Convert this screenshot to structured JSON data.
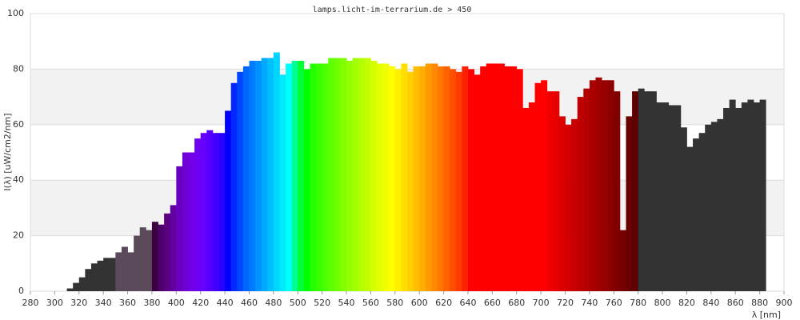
{
  "chart_data": {
    "type": "spectrum",
    "title": "lamps.licht-im-terrarium.de > 450",
    "x_label": "λ [nm]",
    "y_label": "I(λ)  [uW/cm2/nm]",
    "x": [
      280,
      285,
      290,
      295,
      300,
      305,
      310,
      315,
      320,
      325,
      330,
      335,
      340,
      345,
      350,
      355,
      360,
      365,
      370,
      375,
      380,
      385,
      390,
      395,
      400,
      405,
      410,
      415,
      420,
      425,
      430,
      435,
      440,
      445,
      450,
      455,
      460,
      465,
      470,
      475,
      480,
      485,
      490,
      495,
      500,
      505,
      510,
      515,
      520,
      525,
      530,
      535,
      540,
      545,
      550,
      555,
      560,
      565,
      570,
      575,
      580,
      585,
      590,
      595,
      600,
      605,
      610,
      615,
      620,
      625,
      630,
      635,
      640,
      645,
      650,
      655,
      660,
      665,
      670,
      675,
      680,
      685,
      690,
      695,
      700,
      705,
      710,
      715,
      720,
      725,
      730,
      735,
      740,
      745,
      750,
      755,
      760,
      765,
      770,
      775,
      780,
      785,
      790,
      795,
      800,
      805,
      810,
      815,
      820,
      825,
      830,
      835,
      840,
      845,
      850,
      855,
      860,
      865,
      870,
      875,
      880
    ],
    "values": [
      0,
      0,
      0,
      0,
      0,
      0,
      1,
      3,
      5,
      8,
      10,
      11,
      12,
      12,
      14,
      16,
      14,
      20,
      23,
      22,
      25,
      24,
      28,
      31,
      45,
      50,
      50,
      55,
      57,
      58,
      57,
      57,
      65,
      75,
      79,
      81,
      83,
      83,
      84,
      84,
      86,
      78,
      82,
      83,
      83,
      80,
      82,
      82,
      82,
      84,
      84,
      84,
      83,
      84,
      84,
      84,
      83,
      82,
      82,
      81,
      80,
      82,
      79,
      81,
      81,
      82,
      82,
      81,
      81,
      80,
      79,
      81,
      80,
      78,
      81,
      82,
      82,
      82,
      81,
      81,
      80,
      66,
      68,
      75,
      76,
      72,
      72,
      63,
      60,
      62,
      70,
      73,
      76,
      77,
      76,
      76,
      72,
      22,
      63,
      72,
      73,
      72,
      72,
      68,
      68,
      67,
      67,
      59,
      52,
      55,
      57,
      60,
      61,
      62,
      66,
      69,
      66,
      68,
      69,
      68,
      69
    ],
    "colors": [
      "#333333",
      "#333333",
      "#333333",
      "#333333",
      "#333333",
      "#333333",
      "#333333",
      "#333333",
      "#333333",
      "#333333",
      "#333333",
      "#333333",
      "#333333",
      "#333333",
      "#5a4a5a",
      "#5a4a5a",
      "#5a4a5a",
      "#5a4a5a",
      "#5a4a5a",
      "#5a4a5a",
      "#3a0040",
      "#4c006a",
      "#5a0080",
      "#6300a0",
      "#6a00c0",
      "#6f00d4",
      "#7000e6",
      "#6d00f0",
      "#6600ff",
      "#5500ff",
      "#4400ff",
      "#2a00ff",
      "#0000ff",
      "#0028ff",
      "#0046ff",
      "#0064ff",
      "#007bff",
      "#0092ff",
      "#00a9ff",
      "#00c0ff",
      "#00d5ff",
      "#00eaff",
      "#00ffff",
      "#00ff92",
      "#00ff33",
      "#00ff00",
      "#24ff00",
      "#36ff00",
      "#4aff00",
      "#5eff00",
      "#70ff00",
      "#81ff00",
      "#94ff00",
      "#a3ff00",
      "#b3ff00",
      "#c3ff00",
      "#d4ff00",
      "#e3ff00",
      "#f0ff00",
      "#ffff00",
      "#ffef00",
      "#ffdf00",
      "#ffcf00",
      "#ffbe00",
      "#ffad00",
      "#ff9b00",
      "#ff8900",
      "#ff7700",
      "#ff6300",
      "#ff4f00",
      "#ff3a00",
      "#ff2100",
      "#ff0000",
      "#ff0000",
      "#ff0000",
      "#ff0000",
      "#ff0000",
      "#ff0000",
      "#ff0000",
      "#ff0000",
      "#ff0000",
      "#ff0000",
      "#ff0000",
      "#ff0000",
      "#ff0000",
      "#f00000",
      "#e60000",
      "#dc0000",
      "#d20000",
      "#c80000",
      "#be0000",
      "#b40000",
      "#aa0000",
      "#a00000",
      "#960000",
      "#8c0000",
      "#800000",
      "#740000",
      "#680000",
      "#5c0000",
      "#333333",
      "#333333",
      "#333333",
      "#333333",
      "#333333",
      "#333333",
      "#333333",
      "#333333",
      "#333333",
      "#333333",
      "#333333",
      "#333333",
      "#333333",
      "#333333",
      "#333333",
      "#333333",
      "#333333",
      "#333333",
      "#333333",
      "#333333",
      "#333333"
    ],
    "xlim": [
      280,
      900
    ],
    "ylim": [
      0,
      100
    ],
    "xticks": [
      280,
      300,
      320,
      340,
      360,
      380,
      400,
      420,
      440,
      460,
      480,
      500,
      520,
      540,
      560,
      580,
      600,
      620,
      640,
      660,
      680,
      700,
      720,
      740,
      760,
      780,
      800,
      820,
      840,
      860,
      880,
      900
    ],
    "yticks": [
      0,
      20,
      40,
      60,
      80,
      100
    ],
    "grid": true,
    "grid_bands": true
  }
}
